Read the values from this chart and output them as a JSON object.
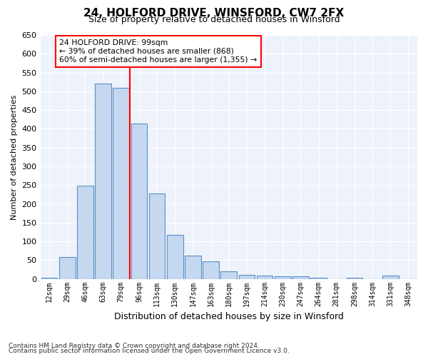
{
  "title": "24, HOLFORD DRIVE, WINSFORD, CW7 2FX",
  "subtitle": "Size of property relative to detached houses in Winsford",
  "xlabel": "Distribution of detached houses by size in Winsford",
  "ylabel": "Number of detached properties",
  "bin_labels": [
    "12sqm",
    "29sqm",
    "46sqm",
    "63sqm",
    "79sqm",
    "96sqm",
    "113sqm",
    "130sqm",
    "147sqm",
    "163sqm",
    "180sqm",
    "197sqm",
    "214sqm",
    "230sqm",
    "247sqm",
    "264sqm",
    "281sqm",
    "298sqm",
    "314sqm",
    "331sqm",
    "348sqm"
  ],
  "bar_values": [
    3,
    58,
    248,
    521,
    510,
    415,
    228,
    117,
    62,
    46,
    20,
    10,
    8,
    7,
    6,
    3,
    0,
    4,
    0,
    8,
    0
  ],
  "bar_color": "#c5d8f0",
  "bar_edge_color": "#5a8fc3",
  "red_line_x": 4.5,
  "red_line_label": "24 HOLFORD DRIVE: 99sqm",
  "annotation_line1": "← 39% of detached houses are smaller (868)",
  "annotation_line2": "60% of semi-detached houses are larger (1,355) →",
  "ylim": [
    0,
    650
  ],
  "yticks": [
    0,
    50,
    100,
    150,
    200,
    250,
    300,
    350,
    400,
    450,
    500,
    550,
    600,
    650
  ],
  "footer1": "Contains HM Land Registry data © Crown copyright and database right 2024.",
  "footer2": "Contains public sector information licensed under the Open Government Licence v3.0.",
  "plot_bg_color": "#edf2fb"
}
